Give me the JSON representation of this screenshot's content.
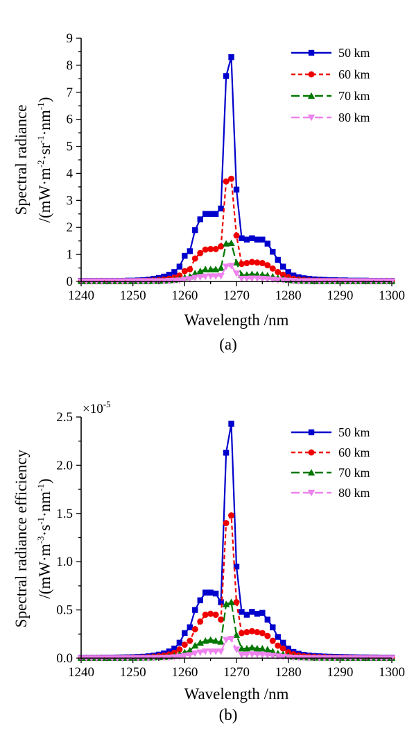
{
  "chart_data": [
    {
      "type": "line",
      "caption": "(a)",
      "xlabel": "Wavelength /nm",
      "ylabel_line1": "Spectral radiance",
      "ylabel_line2_parts": [
        "/(mW·m",
        "-2",
        "·sr",
        "-1",
        "·nm",
        "-1",
        ")"
      ],
      "xlim": [
        1240,
        1300
      ],
      "ylim": [
        0,
        9
      ],
      "xticks": [
        1240,
        1250,
        1260,
        1270,
        1280,
        1290,
        1300
      ],
      "yticks": [
        0,
        1,
        2,
        3,
        4,
        5,
        6,
        7,
        8,
        9
      ],
      "ytick_labels": [
        "0",
        "1",
        "2",
        "3",
        "4",
        "5",
        "6",
        "7",
        "8",
        "9"
      ],
      "exponent_label": "",
      "legend_position": "top-right",
      "x": [
        1240,
        1241,
        1242,
        1243,
        1244,
        1245,
        1246,
        1247,
        1248,
        1249,
        1250,
        1251,
        1252,
        1253,
        1254,
        1255,
        1256,
        1257,
        1258,
        1259,
        1260,
        1261,
        1262,
        1263,
        1264,
        1265,
        1266,
        1267,
        1268,
        1269,
        1270,
        1271,
        1272,
        1273,
        1274,
        1275,
        1276,
        1277,
        1278,
        1279,
        1280,
        1281,
        1282,
        1283,
        1284,
        1285,
        1286,
        1287,
        1288,
        1289,
        1290,
        1291,
        1292,
        1293,
        1294,
        1295,
        1296,
        1297,
        1298,
        1299,
        1300
      ],
      "series": [
        {
          "name": "50 km",
          "color": "#0000cc",
          "marker": "square",
          "dash": "",
          "values": [
            0.02,
            0.02,
            0.02,
            0.02,
            0.02,
            0.02,
            0.02,
            0.02,
            0.02,
            0.03,
            0.03,
            0.04,
            0.05,
            0.07,
            0.1,
            0.13,
            0.18,
            0.25,
            0.35,
            0.55,
            0.95,
            1.12,
            1.9,
            2.3,
            2.5,
            2.5,
            2.5,
            2.7,
            7.6,
            8.3,
            3.4,
            1.6,
            1.55,
            1.6,
            1.55,
            1.55,
            1.4,
            1.1,
            0.8,
            0.55,
            0.35,
            0.22,
            0.16,
            0.12,
            0.1,
            0.08,
            0.07,
            0.06,
            0.05,
            0.05,
            0.04,
            0.04,
            0.03,
            0.03,
            0.03,
            0.03,
            0.02,
            0.02,
            0.02,
            0.02,
            0.02
          ]
        },
        {
          "name": "60 km",
          "color": "#ee0000",
          "marker": "circle",
          "dash": "6,4",
          "values": [
            0.01,
            0.01,
            0.01,
            0.01,
            0.01,
            0.01,
            0.01,
            0.01,
            0.01,
            0.01,
            0.01,
            0.02,
            0.02,
            0.03,
            0.04,
            0.05,
            0.07,
            0.1,
            0.14,
            0.22,
            0.38,
            0.45,
            0.85,
            1.05,
            1.18,
            1.2,
            1.2,
            1.3,
            3.7,
            3.8,
            1.7,
            0.65,
            0.68,
            0.72,
            0.7,
            0.68,
            0.6,
            0.48,
            0.35,
            0.25,
            0.16,
            0.1,
            0.07,
            0.05,
            0.04,
            0.03,
            0.03,
            0.02,
            0.02,
            0.02,
            0.02,
            0.01,
            0.01,
            0.01,
            0.01,
            0.01,
            0.01,
            0.01,
            0.01,
            0.01,
            0.01
          ]
        },
        {
          "name": "70 km",
          "color": "#007700",
          "marker": "triangle-up",
          "dash": "12,5",
          "values": [
            0.01,
            0.01,
            0.01,
            0.01,
            0.01,
            0.01,
            0.01,
            0.01,
            0.01,
            0.01,
            0.01,
            0.01,
            0.01,
            0.01,
            0.02,
            0.02,
            0.03,
            0.04,
            0.06,
            0.09,
            0.15,
            0.18,
            0.3,
            0.38,
            0.45,
            0.45,
            0.45,
            0.5,
            1.4,
            1.42,
            0.7,
            0.24,
            0.25,
            0.27,
            0.26,
            0.25,
            0.22,
            0.18,
            0.13,
            0.09,
            0.06,
            0.04,
            0.03,
            0.02,
            0.02,
            0.01,
            0.01,
            0.01,
            0.01,
            0.01,
            0.01,
            0.01,
            0.01,
            0.01,
            0.01,
            0.01,
            0.01,
            0.01,
            0.01,
            0.01,
            0.01
          ]
        },
        {
          "name": "80 km",
          "color": "#ee82ee",
          "marker": "triangle-down",
          "dash": "12,5",
          "values": [
            0.01,
            0.01,
            0.01,
            0.01,
            0.01,
            0.01,
            0.01,
            0.01,
            0.01,
            0.01,
            0.01,
            0.01,
            0.01,
            0.01,
            0.01,
            0.01,
            0.01,
            0.02,
            0.03,
            0.04,
            0.07,
            0.09,
            0.14,
            0.16,
            0.18,
            0.19,
            0.19,
            0.2,
            0.55,
            0.58,
            0.3,
            0.1,
            0.1,
            0.11,
            0.11,
            0.1,
            0.09,
            0.07,
            0.05,
            0.04,
            0.03,
            0.02,
            0.01,
            0.01,
            0.01,
            0.01,
            0.01,
            0.01,
            0.01,
            0.01,
            0.01,
            0.01,
            0.01,
            0.01,
            0.01,
            0.01,
            0.01,
            0.01,
            0.01,
            0.01,
            0.01
          ]
        }
      ]
    },
    {
      "type": "line",
      "caption": "(b)",
      "xlabel": "Wavelength /nm",
      "ylabel_line1": "Spectral radiance efficiency",
      "ylabel_line2_parts": [
        "/(mW·m",
        "-3",
        "·s",
        "-1",
        "·nm",
        "-1",
        ")"
      ],
      "xlim": [
        1240,
        1300
      ],
      "ylim": [
        0,
        2.5
      ],
      "xticks": [
        1240,
        1250,
        1260,
        1270,
        1280,
        1290,
        1300
      ],
      "yticks": [
        0,
        0.5,
        1.0,
        1.5,
        2.0,
        2.5
      ],
      "ytick_labels": [
        "0.0",
        "0.5",
        "1.0",
        "1.5",
        "2.0",
        "2.5"
      ],
      "exponent_label": "×10",
      "exponent_power": "-5",
      "legend_position": "top-right",
      "x": [
        1240,
        1241,
        1242,
        1243,
        1244,
        1245,
        1246,
        1247,
        1248,
        1249,
        1250,
        1251,
        1252,
        1253,
        1254,
        1255,
        1256,
        1257,
        1258,
        1259,
        1260,
        1261,
        1262,
        1263,
        1264,
        1265,
        1266,
        1267,
        1268,
        1269,
        1270,
        1271,
        1272,
        1273,
        1274,
        1275,
        1276,
        1277,
        1278,
        1279,
        1280,
        1281,
        1282,
        1283,
        1284,
        1285,
        1286,
        1287,
        1288,
        1289,
        1290,
        1291,
        1292,
        1293,
        1294,
        1295,
        1296,
        1297,
        1298,
        1299,
        1300
      ],
      "series": [
        {
          "name": "50 km",
          "color": "#0000cc",
          "marker": "square",
          "dash": "",
          "values": [
            0.005,
            0.005,
            0.005,
            0.005,
            0.006,
            0.006,
            0.006,
            0.007,
            0.008,
            0.009,
            0.01,
            0.012,
            0.015,
            0.02,
            0.028,
            0.037,
            0.05,
            0.07,
            0.1,
            0.16,
            0.26,
            0.32,
            0.5,
            0.6,
            0.68,
            0.68,
            0.67,
            0.58,
            2.13,
            2.43,
            0.95,
            0.48,
            0.45,
            0.48,
            0.46,
            0.47,
            0.4,
            0.32,
            0.22,
            0.16,
            0.1,
            0.065,
            0.046,
            0.035,
            0.028,
            0.023,
            0.02,
            0.017,
            0.015,
            0.013,
            0.012,
            0.011,
            0.01,
            0.009,
            0.008,
            0.008,
            0.007,
            0.007,
            0.006,
            0.006,
            0.006
          ]
        },
        {
          "name": "60 km",
          "color": "#ee0000",
          "marker": "circle",
          "dash": "6,4",
          "values": [
            0.003,
            0.003,
            0.003,
            0.003,
            0.003,
            0.003,
            0.003,
            0.004,
            0.004,
            0.005,
            0.005,
            0.006,
            0.008,
            0.01,
            0.014,
            0.02,
            0.027,
            0.038,
            0.055,
            0.09,
            0.14,
            0.18,
            0.3,
            0.38,
            0.45,
            0.46,
            0.45,
            0.4,
            1.4,
            1.48,
            0.58,
            0.26,
            0.27,
            0.28,
            0.27,
            0.26,
            0.23,
            0.18,
            0.13,
            0.1,
            0.06,
            0.04,
            0.028,
            0.02,
            0.016,
            0.013,
            0.011,
            0.01,
            0.008,
            0.007,
            0.006,
            0.006,
            0.005,
            0.005,
            0.004,
            0.004,
            0.004,
            0.003,
            0.003,
            0.003,
            0.003
          ]
        },
        {
          "name": "70 km",
          "color": "#007700",
          "marker": "triangle-up",
          "dash": "12,5",
          "values": [
            0.002,
            0.002,
            0.002,
            0.002,
            0.002,
            0.002,
            0.002,
            0.002,
            0.002,
            0.003,
            0.003,
            0.003,
            0.004,
            0.005,
            0.007,
            0.009,
            0.012,
            0.017,
            0.025,
            0.04,
            0.06,
            0.08,
            0.13,
            0.16,
            0.18,
            0.19,
            0.18,
            0.17,
            0.56,
            0.58,
            0.24,
            0.1,
            0.1,
            0.11,
            0.1,
            0.1,
            0.09,
            0.07,
            0.05,
            0.04,
            0.025,
            0.016,
            0.011,
            0.008,
            0.006,
            0.005,
            0.004,
            0.004,
            0.003,
            0.003,
            0.003,
            0.002,
            0.002,
            0.002,
            0.002,
            0.002,
            0.002,
            0.002,
            0.002,
            0.002,
            0.002
          ]
        },
        {
          "name": "80 km",
          "color": "#ee82ee",
          "marker": "triangle-down",
          "dash": "12,5",
          "values": [
            0.001,
            0.001,
            0.001,
            0.001,
            0.001,
            0.001,
            0.001,
            0.001,
            0.001,
            0.001,
            0.001,
            0.002,
            0.002,
            0.002,
            0.003,
            0.004,
            0.005,
            0.007,
            0.01,
            0.016,
            0.025,
            0.032,
            0.05,
            0.06,
            0.07,
            0.07,
            0.07,
            0.07,
            0.19,
            0.2,
            0.09,
            0.035,
            0.037,
            0.04,
            0.038,
            0.036,
            0.032,
            0.026,
            0.019,
            0.014,
            0.009,
            0.006,
            0.004,
            0.003,
            0.002,
            0.002,
            0.002,
            0.001,
            0.001,
            0.001,
            0.001,
            0.001,
            0.001,
            0.001,
            0.001,
            0.001,
            0.001,
            0.001,
            0.001,
            0.001,
            0.001
          ]
        }
      ]
    }
  ]
}
